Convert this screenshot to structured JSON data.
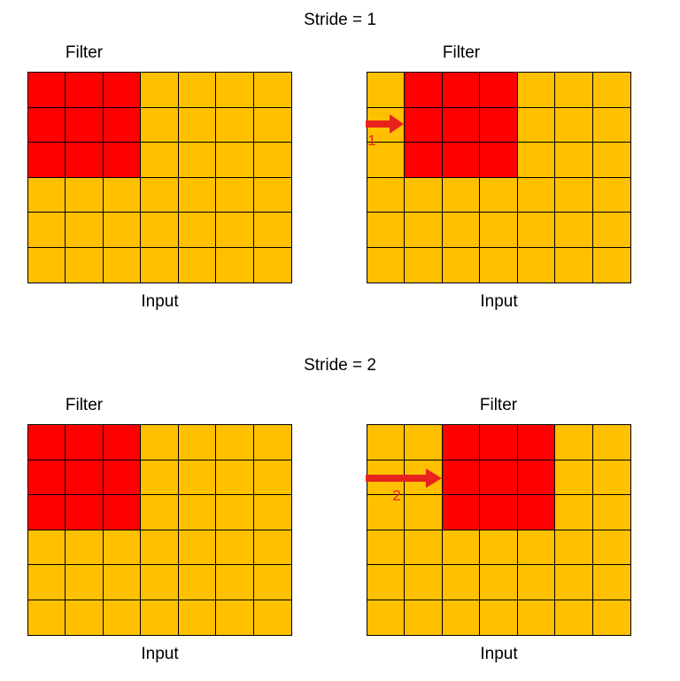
{
  "colors": {
    "input_cell": "#FFC000",
    "filter_cell": "#FF0000",
    "grid_line": "#000000",
    "arrow": "#E8231E",
    "arrow_label": "#E8231E",
    "text": "#000000",
    "background": "#FFFFFF"
  },
  "sections": [
    {
      "title": "Stride = 1",
      "panels": [
        {
          "filter_label": "Filter",
          "input_label": "Input",
          "grid": {
            "rows": 6,
            "cols": 7,
            "filter_row": 0,
            "filter_col": 0,
            "filter_rows": 3,
            "filter_cols": 3
          },
          "arrow": null
        },
        {
          "filter_label": "Filter",
          "input_label": "Input",
          "grid": {
            "rows": 6,
            "cols": 7,
            "filter_row": 0,
            "filter_col": 1,
            "filter_rows": 3,
            "filter_cols": 3
          },
          "arrow": {
            "label": "1",
            "length_cells": 1,
            "direction": "right"
          }
        }
      ]
    },
    {
      "title": "Stride = 2",
      "panels": [
        {
          "filter_label": "Filter",
          "input_label": "Input",
          "grid": {
            "rows": 6,
            "cols": 7,
            "filter_row": 0,
            "filter_col": 0,
            "filter_rows": 3,
            "filter_cols": 3
          },
          "arrow": null
        },
        {
          "filter_label": "Filter",
          "input_label": "Input",
          "grid": {
            "rows": 6,
            "cols": 7,
            "filter_row": 0,
            "filter_col": 2,
            "filter_rows": 3,
            "filter_cols": 3
          },
          "arrow": {
            "label": "2",
            "length_cells": 2,
            "direction": "right"
          }
        }
      ]
    }
  ]
}
